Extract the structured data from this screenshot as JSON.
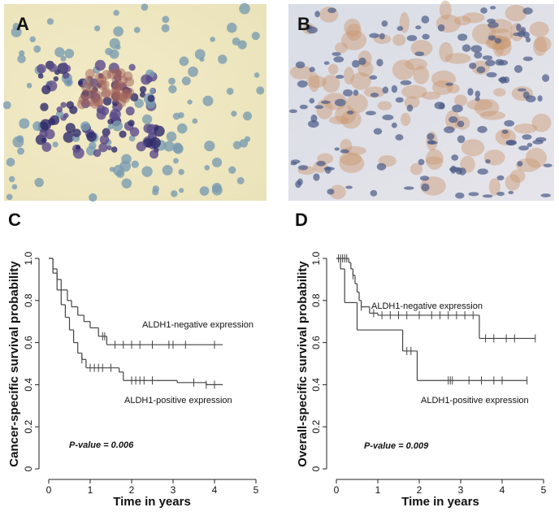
{
  "images": [
    {
      "label": "A"
    },
    {
      "label": "B"
    }
  ],
  "chart_data": [
    {
      "type": "step",
      "label": "C",
      "ylabel": "Cancer-specific survival probability",
      "xlabel": "Time in years",
      "annotation": "P-value = 0.006",
      "xlim": [
        0,
        5
      ],
      "xticks": [
        0,
        1,
        2,
        3,
        4,
        5
      ],
      "ylim": [
        0,
        1
      ],
      "yticks": [
        0,
        0.2,
        0.4,
        0.6,
        0.8,
        {
          "value": 1,
          "label": "1.0"
        }
      ],
      "series": [
        {
          "name": "ALDH1-negative expression",
          "color": "#444",
          "x": [
            0,
            0.1,
            0.2,
            0.3,
            0.45,
            0.55,
            0.7,
            0.85,
            1.0,
            1.2,
            1.4,
            4.2
          ],
          "values": [
            1,
            0.95,
            0.9,
            0.85,
            0.8,
            0.77,
            0.73,
            0.7,
            0.67,
            0.63,
            0.59,
            0.59
          ],
          "censored_x": [
            1.3,
            1.35,
            1.6,
            1.8,
            2.0,
            2.2,
            2.5,
            2.9,
            3.0,
            3.3,
            4.0
          ]
        },
        {
          "name": "ALDH1-positive expression",
          "color": "#444",
          "x": [
            0,
            0.1,
            0.2,
            0.3,
            0.4,
            0.5,
            0.6,
            0.7,
            0.8,
            0.9,
            1.7,
            1.8,
            3.1,
            3.8,
            4.2
          ],
          "values": [
            1,
            0.93,
            0.85,
            0.78,
            0.72,
            0.66,
            0.6,
            0.55,
            0.52,
            0.48,
            0.46,
            0.42,
            0.41,
            0.4,
            0.4
          ],
          "censored_x": [
            0.8,
            1.0,
            1.1,
            1.2,
            1.3,
            1.5,
            2.0,
            2.1,
            2.2,
            2.3,
            2.5,
            3.5,
            3.8,
            4.0
          ]
        }
      ]
    },
    {
      "type": "step",
      "label": "D",
      "ylabel": "Overall-specific survival probability",
      "xlabel": "Time in years",
      "annotation": "P-value = 0.009",
      "xlim": [
        0,
        5
      ],
      "xticks": [
        0,
        1,
        2,
        3,
        4,
        5
      ],
      "ylim": [
        0,
        1
      ],
      "yticks": [
        0,
        0.2,
        0.4,
        0.6,
        0.8,
        {
          "value": 1,
          "label": "1.0"
        }
      ],
      "series": [
        {
          "name": "ALDH1-negative expression",
          "color": "#444",
          "x": [
            0,
            0.3,
            0.35,
            0.4,
            0.45,
            0.5,
            0.55,
            0.6,
            0.8,
            1.0,
            3.45,
            4.8
          ],
          "values": [
            1,
            0.98,
            0.95,
            0.92,
            0.88,
            0.84,
            0.8,
            0.77,
            0.74,
            0.73,
            0.62,
            0.62
          ],
          "censored_x": [
            0.1,
            0.15,
            0.2,
            0.25,
            0.4,
            0.6,
            0.9,
            1.1,
            1.3,
            1.5,
            1.7,
            2.0,
            2.3,
            2.5,
            2.7,
            2.9,
            3.1,
            3.3,
            3.6,
            3.8,
            4.1,
            4.3,
            4.8
          ]
        },
        {
          "name": "ALDH1-positive expression",
          "color": "#444",
          "x": [
            0,
            0.1,
            0.2,
            0.5,
            1.6,
            1.95,
            4.6
          ],
          "values": [
            1,
            0.95,
            0.79,
            0.66,
            0.56,
            0.42,
            0.42
          ],
          "censored_x": [
            0.05,
            1.7,
            1.8,
            2.7,
            2.75,
            2.8,
            3.2,
            3.5,
            3.8,
            4.0,
            4.6
          ]
        }
      ]
    }
  ]
}
